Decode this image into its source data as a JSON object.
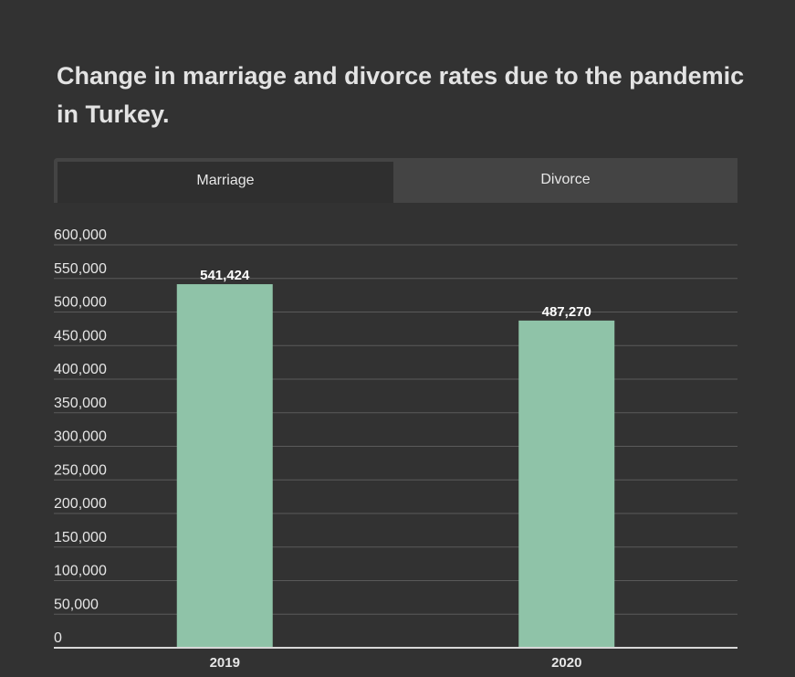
{
  "title": "Change in marriage and divorce rates due to the pandemic in Turkey.",
  "tabs": [
    {
      "label": "Marriage",
      "active": true
    },
    {
      "label": "Divorce",
      "active": false
    }
  ],
  "colors": {
    "background": "#323232",
    "bar": "#8fc3a8",
    "grid": "#5a5a5a",
    "axis": "#d8d8d8",
    "text": "#e6e6e6"
  },
  "chart_data": {
    "type": "bar",
    "title": "Change in marriage and divorce rates due to the pandemic in Turkey.",
    "categories": [
      "2019",
      "2020"
    ],
    "values": [
      541424,
      487270
    ],
    "data_labels": [
      "541,424",
      "487,270"
    ],
    "y_ticks": [
      0,
      50000,
      100000,
      150000,
      200000,
      250000,
      300000,
      350000,
      400000,
      450000,
      500000,
      550000,
      600000
    ],
    "y_tick_labels": [
      "0",
      "50,000",
      "100,000",
      "150,000",
      "200,000",
      "250,000",
      "300,000",
      "350,000",
      "400,000",
      "450,000",
      "500,000",
      "550,000",
      "600,000"
    ],
    "xlabel": "",
    "ylabel": "",
    "ylim": [
      0,
      600000
    ],
    "grid": true,
    "legend": "none"
  }
}
